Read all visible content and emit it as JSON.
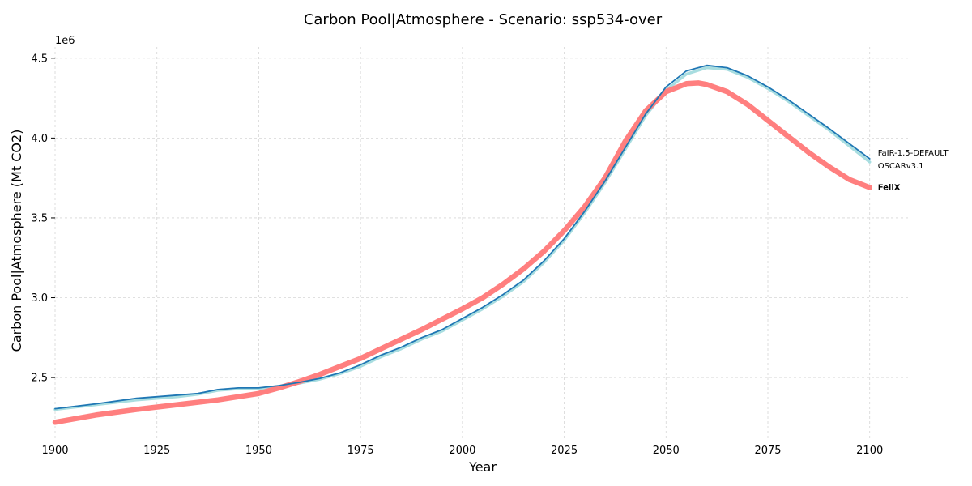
{
  "chart_data": {
    "type": "line",
    "title": "Carbon Pool|Atmosphere - Scenario: ssp534-over",
    "xlabel": "Year",
    "ylabel": "Carbon Pool|Atmosphere (Mt CO2)",
    "y_multiplier_label": "1e6",
    "xlim": [
      1900,
      2110
    ],
    "ylim": [
      2110000,
      4570000
    ],
    "x_ticks": [
      1900,
      1925,
      1950,
      1975,
      2000,
      2025,
      2050,
      2075,
      2100
    ],
    "x_tick_labels": [
      "1900",
      "1925",
      "1950",
      "1975",
      "2000",
      "2025",
      "2050",
      "2075",
      "2100"
    ],
    "y_ticks": [
      2500000,
      3000000,
      3500000,
      4000000,
      4500000
    ],
    "y_tick_labels": [
      "2.5",
      "3.0",
      "3.5",
      "4.0",
      "4.5"
    ],
    "grid": true,
    "legend": "none (series labeled at line ends)",
    "series": [
      {
        "name": "OSCARv3.1",
        "color": "#a8dde0",
        "x": [
          1900,
          1910,
          1920,
          1930,
          1935,
          1940,
          1945,
          1950,
          1955,
          1960,
          1965,
          1970,
          1975,
          1980,
          1985,
          1990,
          1995,
          2000,
          2005,
          2010,
          2015,
          2020,
          2025,
          2030,
          2035,
          2040,
          2045,
          2050,
          2055,
          2060,
          2065,
          2070,
          2075,
          2080,
          2085,
          2090,
          2095,
          2100
        ],
        "values": [
          2300000,
          2330000,
          2360000,
          2380000,
          2395000,
          2420000,
          2430000,
          2430000,
          2445000,
          2465000,
          2490000,
          2525000,
          2570000,
          2630000,
          2680000,
          2740000,
          2790000,
          2860000,
          2930000,
          3010000,
          3100000,
          3220000,
          3360000,
          3530000,
          3720000,
          3930000,
          4140000,
          4300000,
          4400000,
          4440000,
          4430000,
          4380000,
          4310000,
          4230000,
          4140000,
          4050000,
          3950000,
          3850000
        ]
      },
      {
        "name": "FaIR-1.5-DEFAULT",
        "color": "#1f77b4",
        "x": [
          1900,
          1910,
          1920,
          1930,
          1935,
          1940,
          1945,
          1950,
          1955,
          1960,
          1965,
          1970,
          1975,
          1980,
          1985,
          1990,
          1995,
          2000,
          2005,
          2010,
          2015,
          2020,
          2025,
          2030,
          2035,
          2040,
          2045,
          2050,
          2055,
          2060,
          2065,
          2070,
          2075,
          2080,
          2085,
          2090,
          2095,
          2100
        ],
        "values": [
          2305000,
          2335000,
          2370000,
          2390000,
          2400000,
          2425000,
          2435000,
          2435000,
          2450000,
          2470000,
          2495000,
          2530000,
          2580000,
          2640000,
          2690000,
          2750000,
          2800000,
          2870000,
          2940000,
          3020000,
          3110000,
          3230000,
          3370000,
          3540000,
          3730000,
          3940000,
          4150000,
          4320000,
          4420000,
          4455000,
          4440000,
          4390000,
          4320000,
          4240000,
          4150000,
          4060000,
          3965000,
          3870000
        ]
      },
      {
        "name": "FeliX",
        "color": "#ff7f7f",
        "x": [
          1900,
          1910,
          1920,
          1930,
          1940,
          1950,
          1955,
          1960,
          1965,
          1970,
          1975,
          1980,
          1985,
          1990,
          1995,
          2000,
          2005,
          2010,
          2015,
          2020,
          2025,
          2030,
          2035,
          2040,
          2045,
          2050,
          2055,
          2058,
          2060,
          2065,
          2070,
          2075,
          2080,
          2085,
          2090,
          2095,
          2100
        ],
        "values": [
          2220000,
          2265000,
          2300000,
          2330000,
          2360000,
          2400000,
          2435000,
          2475000,
          2520000,
          2570000,
          2620000,
          2680000,
          2740000,
          2800000,
          2865000,
          2930000,
          3000000,
          3085000,
          3180000,
          3290000,
          3420000,
          3570000,
          3750000,
          3980000,
          4170000,
          4290000,
          4340000,
          4345000,
          4335000,
          4290000,
          4210000,
          4110000,
          4010000,
          3910000,
          3820000,
          3740000,
          3690000
        ]
      }
    ],
    "end_labels": [
      {
        "text": "FaIR-1.5-DEFAULT",
        "series": "FaIR-1.5-DEFAULT",
        "bold": false
      },
      {
        "text": "OSCARv3.1",
        "series": "OSCARv3.1",
        "bold": false
      },
      {
        "text": "FeliX",
        "series": "FeliX",
        "bold": true
      }
    ]
  }
}
